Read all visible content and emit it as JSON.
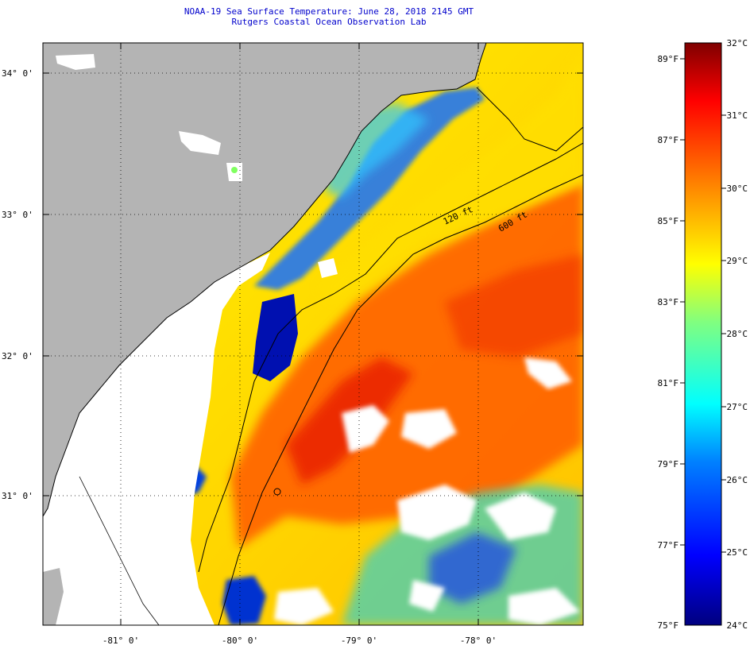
{
  "title": {
    "line1": "NOAA-19 Sea Surface Temperature:  June 28, 2018 2145 GMT",
    "line2": "Rutgers Coastal Ocean Observation Lab"
  },
  "axes": {
    "lat_labels": [
      "34° 0'",
      "33° 0'",
      "32° 0'",
      "31° 0'"
    ],
    "lon_labels": [
      "-81° 0'",
      "-80° 0'",
      "-79° 0'",
      "-78° 0'"
    ]
  },
  "isobaths": {
    "shallow": "120 ft",
    "deep": "600 ft"
  },
  "colorbar": {
    "fahrenheit": [
      "89°F",
      "87°F",
      "85°F",
      "83°F",
      "81°F",
      "79°F",
      "77°F",
      "75°F"
    ],
    "celsius": [
      "32°C",
      "31°C",
      "30°C",
      "29°C",
      "28°C",
      "27°C",
      "26°C",
      "25°C",
      "24°C"
    ],
    "gradient": [
      "#00007f",
      "#0000ff",
      "#0080ff",
      "#00ffff",
      "#80ff80",
      "#ffff00",
      "#ff8000",
      "#ff0000",
      "#7f0000"
    ]
  },
  "colors": {
    "land": "#b4b4b4",
    "cloud": "#ffffff",
    "outline": "#000000"
  }
}
